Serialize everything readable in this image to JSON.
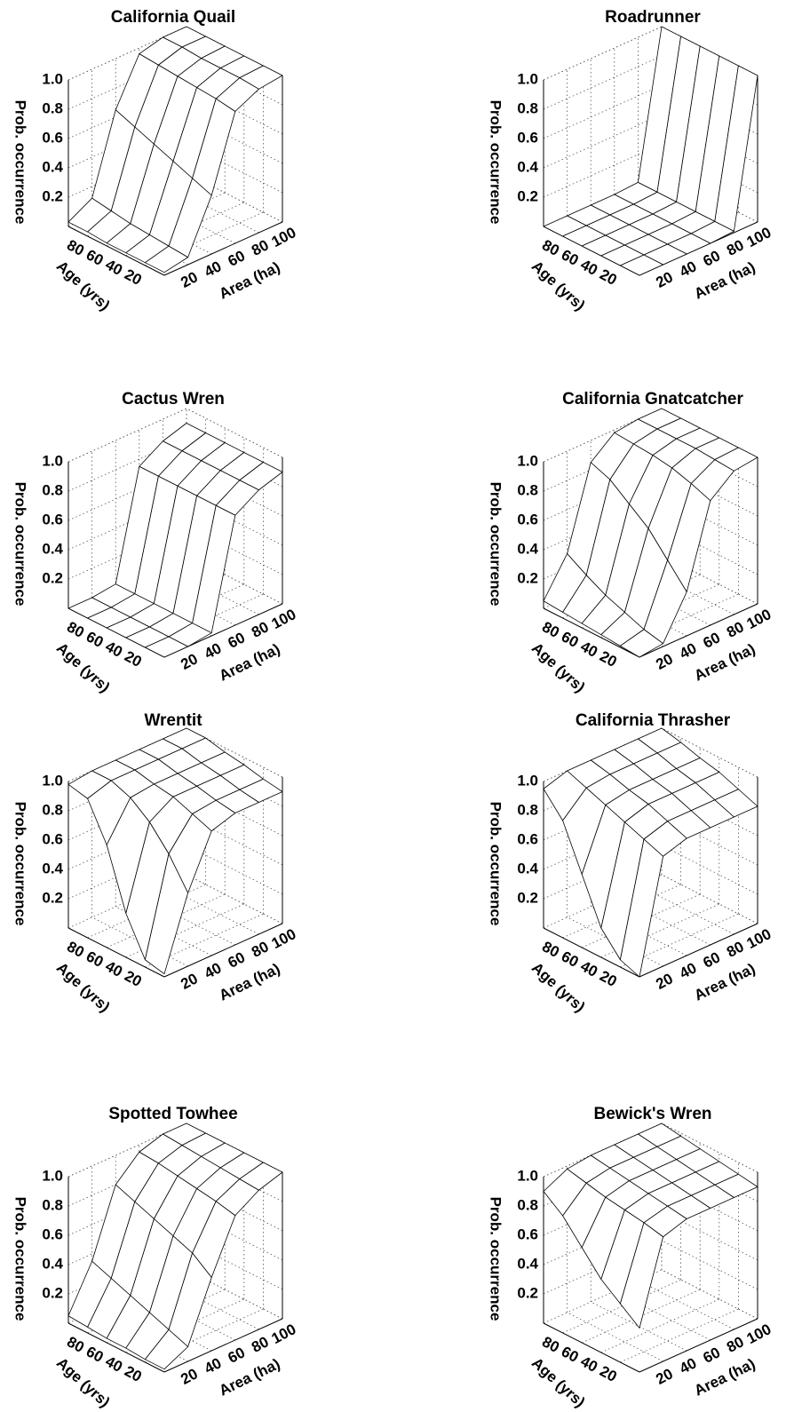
{
  "chart_data": [
    {
      "type": "surface3d",
      "title": "California Quail",
      "zlabel": "Prob. occurrence",
      "ylabel": "Age (yrs)",
      "xlabel": "Area (ha)",
      "x": [
        0,
        20,
        40,
        60,
        80,
        100
      ],
      "y": [
        0,
        20,
        40,
        60,
        80,
        100
      ],
      "z": [
        [
          0.02,
          0.05,
          0.4,
          0.9,
          0.98,
          1
        ],
        [
          0.02,
          0.06,
          0.45,
          0.92,
          0.99,
          1
        ],
        [
          0.02,
          0.07,
          0.5,
          0.93,
          0.99,
          1
        ],
        [
          0.02,
          0.08,
          0.55,
          0.94,
          0.99,
          1
        ],
        [
          0.03,
          0.1,
          0.6,
          0.95,
          1,
          1
        ],
        [
          0.03,
          0.12,
          0.65,
          0.96,
          1,
          1
        ]
      ],
      "xlim": [
        0,
        100
      ],
      "ylim": [
        0,
        100
      ],
      "zlim": [
        0,
        1
      ],
      "xticks": [
        20,
        40,
        60,
        80,
        100
      ],
      "yticks": [
        20,
        40,
        60,
        80
      ],
      "zticks": [
        0.2,
        0.4,
        0.6,
        0.8,
        {
          "value": 1,
          "label": "1.0"
        }
      ]
    },
    {
      "type": "surface3d",
      "title": "Roadrunner",
      "zlabel": "Prob. occurrence",
      "ylabel": "Age (yrs)",
      "xlabel": "Area (ha)",
      "x": [
        0,
        20,
        40,
        60,
        80,
        100
      ],
      "y": [
        0,
        20,
        40,
        60,
        80,
        100
      ],
      "z": [
        [
          0,
          0,
          0,
          0,
          0.01,
          1
        ],
        [
          0,
          0,
          0,
          0,
          0.01,
          1
        ],
        [
          0,
          0,
          0,
          0,
          0.01,
          1
        ],
        [
          0,
          0,
          0,
          0,
          0.01,
          1
        ],
        [
          0,
          0,
          0,
          0,
          0.01,
          1
        ],
        [
          0,
          0,
          0,
          0,
          0.01,
          1
        ]
      ],
      "xlim": [
        0,
        100
      ],
      "ylim": [
        0,
        100
      ],
      "zlim": [
        0,
        1
      ],
      "xticks": [
        20,
        40,
        60,
        80,
        100
      ],
      "yticks": [
        20,
        40,
        60,
        80
      ],
      "zticks": [
        0.2,
        0.4,
        0.6,
        0.8,
        {
          "value": 1,
          "label": "1.0"
        }
      ]
    },
    {
      "type": "surface3d",
      "title": "Cactus Wren",
      "zlabel": "Prob. occurrence",
      "ylabel": "Age (yrs)",
      "xlabel": "Area (ha)",
      "x": [
        0,
        20,
        40,
        60,
        80,
        100
      ],
      "y": [
        0,
        20,
        40,
        60,
        80,
        100
      ],
      "z": [
        [
          0,
          0,
          0.02,
          0.75,
          0.85,
          0.9
        ],
        [
          0,
          0,
          0.02,
          0.75,
          0.85,
          0.9
        ],
        [
          0,
          0,
          0.02,
          0.75,
          0.85,
          0.9
        ],
        [
          0,
          0,
          0.02,
          0.75,
          0.85,
          0.9
        ],
        [
          0,
          0,
          0.02,
          0.75,
          0.85,
          0.9
        ],
        [
          0,
          0,
          0.02,
          0.75,
          0.85,
          0.9
        ]
      ],
      "xlim": [
        0,
        100
      ],
      "ylim": [
        0,
        100
      ],
      "zlim": [
        0,
        1
      ],
      "xticks": [
        20,
        40,
        60,
        80,
        100
      ],
      "yticks": [
        20,
        40,
        60,
        80
      ],
      "zticks": [
        0.2,
        0.4,
        0.6,
        0.8,
        {
          "value": 1,
          "label": "1.0"
        }
      ]
    },
    {
      "type": "surface3d",
      "title": "California Gnatcatcher",
      "zlabel": "Prob. occurrence",
      "ylabel": "Age (yrs)",
      "xlabel": "Area (ha)",
      "x": [
        0,
        20,
        40,
        60,
        80,
        100
      ],
      "y": [
        0,
        20,
        40,
        60,
        80,
        100
      ],
      "z": [
        [
          0,
          0.02,
          0.3,
          0.85,
          0.98,
          1
        ],
        [
          0.01,
          0.05,
          0.45,
          0.9,
          0.99,
          1
        ],
        [
          0.02,
          0.1,
          0.6,
          0.94,
          1,
          1
        ],
        [
          0.03,
          0.15,
          0.7,
          0.96,
          1,
          1
        ],
        [
          0.04,
          0.22,
          0.8,
          0.97,
          1,
          1
        ],
        [
          0.05,
          0.3,
          0.85,
          0.98,
          1,
          1
        ]
      ],
      "xlim": [
        0,
        100
      ],
      "ylim": [
        0,
        100
      ],
      "zlim": [
        0,
        1
      ],
      "xticks": [
        20,
        40,
        60,
        80,
        100
      ],
      "yticks": [
        20,
        40,
        60,
        80
      ],
      "zticks": [
        0.2,
        0.4,
        0.6,
        0.8,
        {
          "value": 1,
          "label": "1.0"
        }
      ]
    },
    {
      "type": "surface3d",
      "title": "Wrentit",
      "zlabel": "Prob. occurrence",
      "ylabel": "Age (yrs)",
      "xlabel": "Area (ha)",
      "x": [
        0,
        20,
        40,
        60,
        80,
        100
      ],
      "y": [
        0,
        20,
        40,
        60,
        80,
        100
      ],
      "z": [
        [
          0.02,
          0.5,
          0.85,
          0.9,
          0.9,
          0.9
        ],
        [
          0.05,
          0.7,
          0.9,
          0.92,
          0.92,
          0.92
        ],
        [
          0.3,
          0.85,
          0.95,
          0.95,
          0.95,
          0.95
        ],
        [
          0.7,
          0.95,
          0.97,
          0.97,
          0.97,
          0.97
        ],
        [
          0.95,
          1,
          1,
          1,
          1,
          1
        ],
        [
          0.98,
          1,
          1,
          1,
          1,
          1
        ]
      ],
      "xlim": [
        0,
        100
      ],
      "ylim": [
        0,
        100
      ],
      "zlim": [
        0,
        1
      ],
      "xticks": [
        20,
        40,
        60,
        80,
        100
      ],
      "yticks": [
        20,
        40,
        60,
        80
      ],
      "zticks": [
        0.2,
        0.4,
        0.6,
        0.8,
        {
          "value": 1,
          "label": "1.0"
        }
      ]
    },
    {
      "type": "surface3d",
      "title": "California Thrasher",
      "zlabel": "Prob. occurrence",
      "ylabel": "Age (yrs)",
      "xlabel": "Area (ha)",
      "x": [
        0,
        20,
        40,
        60,
        80,
        100
      ],
      "y": [
        0,
        20,
        40,
        60,
        80,
        100
      ],
      "z": [
        [
          0,
          0.75,
          0.8,
          0.8,
          0.8,
          0.8
        ],
        [
          0.05,
          0.8,
          0.85,
          0.85,
          0.85,
          0.85
        ],
        [
          0.2,
          0.85,
          0.9,
          0.9,
          0.9,
          0.9
        ],
        [
          0.5,
          0.9,
          0.93,
          0.93,
          0.93,
          0.93
        ],
        [
          0.8,
          0.95,
          0.97,
          0.97,
          0.97,
          0.97
        ],
        [
          0.95,
          1,
          1,
          1,
          1,
          1
        ]
      ],
      "xlim": [
        0,
        100
      ],
      "ylim": [
        0,
        100
      ],
      "zlim": [
        0,
        1
      ],
      "xticks": [
        20,
        40,
        60,
        80,
        100
      ],
      "yticks": [
        20,
        40,
        60,
        80
      ],
      "zticks": [
        0.2,
        0.4,
        0.6,
        0.8,
        {
          "value": 1,
          "label": "1.0"
        }
      ]
    },
    {
      "type": "surface3d",
      "title": "Spotted Towhee",
      "zlabel": "Prob. occurrence",
      "ylabel": "Age (yrs)",
      "xlabel": "Area (ha)",
      "x": [
        0,
        20,
        40,
        60,
        80,
        100
      ],
      "y": [
        0,
        20,
        40,
        60,
        80,
        100
      ],
      "z": [
        [
          0.02,
          0.1,
          0.5,
          0.85,
          0.95,
          1
        ],
        [
          0.02,
          0.15,
          0.6,
          0.88,
          0.96,
          1
        ],
        [
          0.03,
          0.2,
          0.65,
          0.9,
          0.97,
          1
        ],
        [
          0.03,
          0.25,
          0.7,
          0.92,
          0.98,
          1
        ],
        [
          0.04,
          0.3,
          0.75,
          0.94,
          0.99,
          1
        ],
        [
          0.05,
          0.35,
          0.8,
          0.95,
          1,
          1
        ]
      ],
      "xlim": [
        0,
        100
      ],
      "ylim": [
        0,
        100
      ],
      "zlim": [
        0,
        1
      ],
      "xticks": [
        20,
        40,
        60,
        80,
        100
      ],
      "yticks": [
        20,
        40,
        60,
        80
      ],
      "zticks": [
        0.2,
        0.4,
        0.6,
        0.8,
        {
          "value": 1,
          "label": "1.0"
        }
      ]
    },
    {
      "type": "surface3d",
      "title": "Bewick's Wren",
      "zlabel": "Prob. occurrence",
      "ylabel": "Age (yrs)",
      "xlabel": "Area (ha)",
      "x": [
        0,
        20,
        40,
        60,
        80,
        100
      ],
      "y": [
        0,
        20,
        40,
        60,
        80,
        100
      ],
      "z": [
        [
          0.3,
          0.85,
          0.9,
          0.9,
          0.9,
          0.9
        ],
        [
          0.4,
          0.88,
          0.92,
          0.92,
          0.92,
          0.92
        ],
        [
          0.5,
          0.9,
          0.94,
          0.94,
          0.94,
          0.94
        ],
        [
          0.65,
          0.92,
          0.96,
          0.96,
          0.96,
          0.96
        ],
        [
          0.8,
          0.95,
          0.98,
          0.98,
          0.98,
          0.98
        ],
        [
          0.9,
          0.98,
          1,
          1,
          1,
          1
        ]
      ],
      "xlim": [
        0,
        100
      ],
      "ylim": [
        0,
        100
      ],
      "zlim": [
        0,
        1
      ],
      "xticks": [
        20,
        40,
        60,
        80,
        100
      ],
      "yticks": [
        20,
        40,
        60,
        80
      ],
      "zticks": [
        0.2,
        0.4,
        0.6,
        0.8,
        {
          "value": 1,
          "label": "1.0"
        }
      ]
    }
  ]
}
